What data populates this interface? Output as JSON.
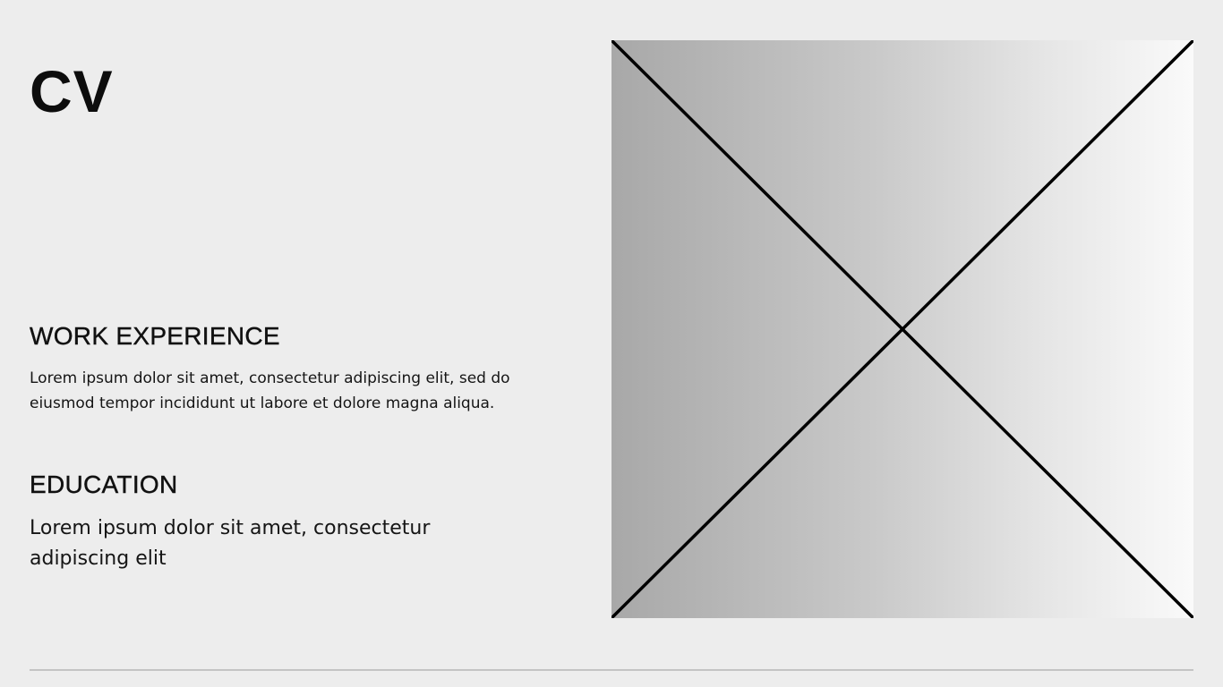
{
  "document": {
    "title": "CV",
    "work_experience": {
      "heading": "WORK EXPERIENCE",
      "body": "Lorem ipsum dolor sit amet, consectetur adipiscing elit, sed do eiusmod tempor incididunt ut labore et dolore magna aliqua."
    },
    "education": {
      "heading": "EDUCATION",
      "body": "Lorem ipsum dolor sit amet, consectetur adipiscing elit"
    }
  },
  "colors": {
    "background": "#ededed",
    "text": "#111111",
    "placeholder_dark": "#a8a8a8",
    "placeholder_light": "#fafafa",
    "rule": "#c4c4c4"
  },
  "icons": {
    "image_placeholder": "image-placeholder-cross-icon"
  }
}
